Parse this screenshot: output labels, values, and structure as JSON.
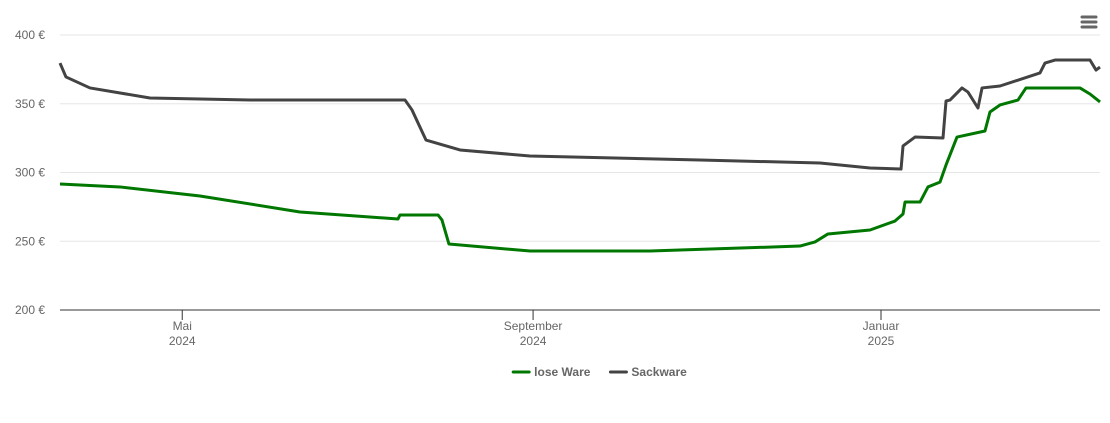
{
  "chart_data": {
    "type": "line",
    "xlim": [
      2024.2135,
      2025.2098
    ],
    "xticks": [
      {
        "value": 2024.3306,
        "label": "Mai 2024"
      },
      {
        "value": 2024.6667,
        "label": "September 2024"
      },
      {
        "value": 2025.0,
        "label": "Januar 2025"
      }
    ],
    "ylim": [
      200,
      400
    ],
    "yticks": [
      {
        "value": 200,
        "label": "200 €"
      },
      {
        "value": 250,
        "label": "250 €"
      },
      {
        "value": 300,
        "label": "300 €"
      },
      {
        "value": 350,
        "label": "350 €"
      },
      {
        "value": 400,
        "label": "400 €"
      }
    ],
    "grid": true,
    "legend": "bottom",
    "series": [
      {
        "name": "lose Ware",
        "color": "#007700",
        "x": [
          2024.2135,
          2024.271,
          2024.3476,
          2024.4434,
          2024.5373,
          2024.5392,
          2024.5756,
          2024.5794,
          2024.5861,
          2024.6637,
          2024.7787,
          2024.9224,
          2024.9368,
          2024.9492,
          2024.9895,
          2025.0134,
          2025.0211,
          2025.023,
          2025.0374,
          2025.045,
          2025.0565,
          2025.0623,
          2025.0728,
          2025.0996,
          2025.1044,
          2025.114,
          2025.1312,
          2025.1389,
          2025.1906,
          2025.2002,
          2025.2098
        ],
        "values": [
          291.6,
          289.5,
          282.9,
          271.3,
          266.2,
          269.1,
          269.1,
          265.5,
          248,
          242.9,
          242.9,
          246.5,
          249.5,
          255.3,
          258.2,
          264.7,
          269.8,
          278.5,
          278.5,
          289.5,
          293,
          305.5,
          325.8,
          330.2,
          344,
          349.1,
          352.7,
          361.5,
          361.5,
          357.1,
          351.3
        ]
      },
      {
        "name": "Sackware",
        "color": "#434343",
        "x": [
          2024.2135,
          2024.2192,
          2024.2422,
          2024.2997,
          2024.3955,
          2024.544,
          2024.5507,
          2024.5641,
          2024.5967,
          2024.6637,
          2024.8266,
          2024.9416,
          2024.9895,
          2025.0192,
          2025.0211,
          2025.0326,
          2025.0594,
          2025.0623,
          2025.0661,
          2025.0776,
          2025.0833,
          2025.0929,
          2025.0968,
          2025.114,
          2025.1523,
          2025.1571,
          2025.1667,
          2025.2002,
          2025.206,
          2025.2098
        ],
        "values": [
          379.6,
          369.5,
          361.5,
          354.2,
          352.7,
          352.7,
          345.5,
          323.6,
          316.4,
          312,
          309.1,
          306.9,
          303.3,
          302.5,
          319.3,
          325.8,
          325.1,
          352,
          352.7,
          361.5,
          358.5,
          346.9,
          361.5,
          362.9,
          372.4,
          379.6,
          381.8,
          381.8,
          374.5,
          376.7
        ]
      }
    ]
  }
}
